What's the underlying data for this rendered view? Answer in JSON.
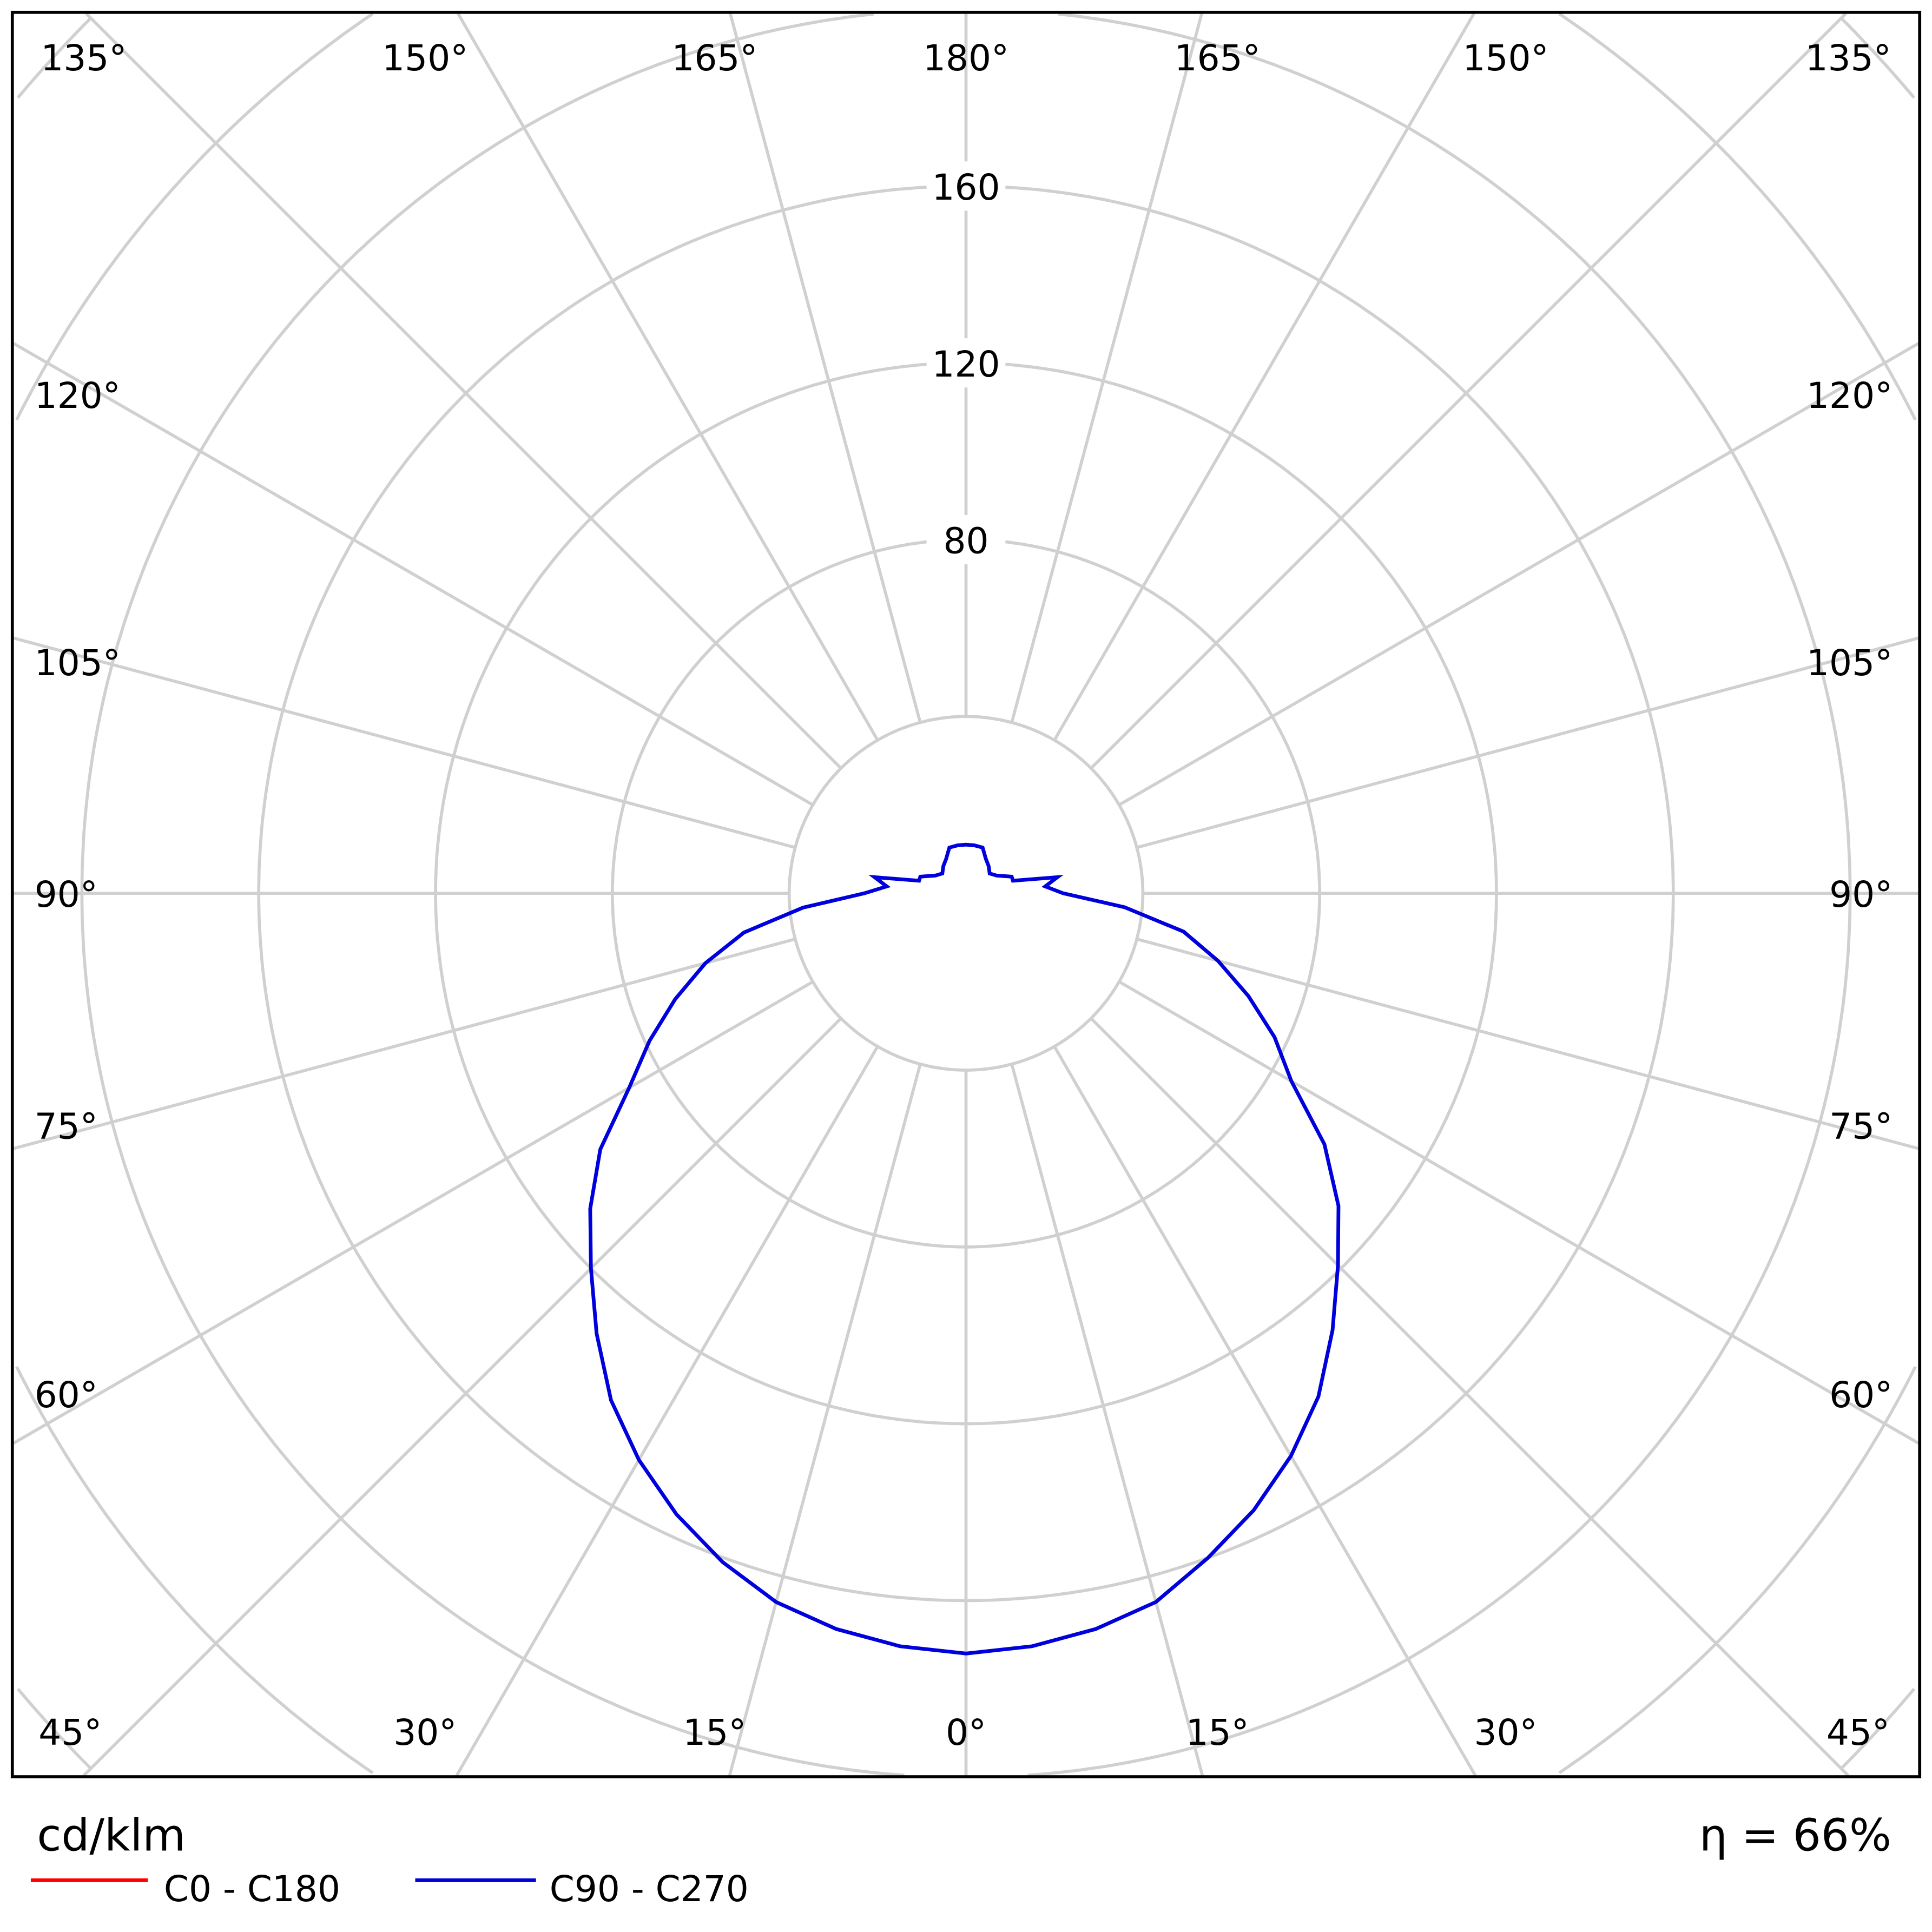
{
  "chart_data": {
    "type": "polar-line",
    "unit_label": "cd/klm",
    "efficiency_label": "η = 66%",
    "radial_ticks": [
      80,
      120,
      160
    ],
    "radial_rings": [
      40,
      80,
      120,
      160,
      200,
      240,
      280
    ],
    "angle_labels": {
      "top": [
        "135°",
        "150°",
        "165°",
        "180°",
        "165°",
        "150°",
        "135°"
      ],
      "left": [
        "120°",
        "105°",
        "90°",
        "75°",
        "60°"
      ],
      "right": [
        "120°",
        "105°",
        "90°",
        "75°",
        "60°"
      ],
      "bottom": [
        "45°",
        "30°",
        "15°",
        "0°",
        "15°",
        "30°",
        "45°"
      ]
    },
    "grid": true,
    "legend_placement": "bottom-left",
    "series": [
      {
        "name": "C0 - C180",
        "color": "#ff0000",
        "angles": [],
        "values_left": [],
        "values_right": []
      },
      {
        "name": "C90 - C270",
        "color": "#0000dd",
        "angles": [
          0,
          5,
          10,
          15,
          20,
          25,
          30,
          35,
          40,
          45,
          50,
          55,
          60,
          65,
          70,
          75,
          80,
          85,
          90,
          95,
          100,
          105,
          110,
          120,
          130,
          140,
          150,
          160,
          170,
          180
        ],
        "values_right": [
          172,
          171,
          169,
          166,
          160,
          154,
          147,
          139,
          129,
          119,
          110,
          99,
          85,
          77,
          68,
          59,
          50,
          36,
          22,
          18,
          21,
          11,
          11,
          8,
          7,
          8,
          9,
          11,
          11,
          11
        ],
        "values_left": [
          172,
          171,
          169,
          166,
          161,
          155,
          148,
          140,
          130,
          120,
          111,
          101,
          88,
          79,
          70,
          61,
          51,
          37,
          23,
          18,
          21,
          11,
          11,
          8,
          7,
          8,
          9,
          11,
          11,
          11
        ]
      }
    ]
  }
}
